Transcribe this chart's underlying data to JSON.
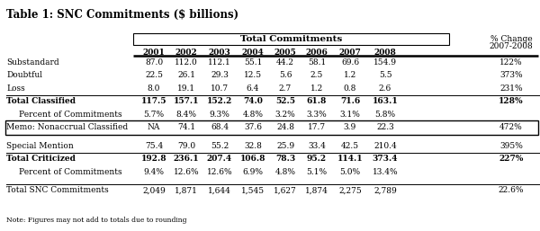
{
  "title": "Table 1: SNC Commitments ($ billions)",
  "header_group": "Total Commitments",
  "years": [
    "2001",
    "2002",
    "2003",
    "2004",
    "2005",
    "2006",
    "2007",
    "2008"
  ],
  "pct_change_header": [
    "% Change",
    "2007-2008"
  ],
  "rows": [
    {
      "label": "Substandard",
      "bold": false,
      "indent": 0,
      "values": [
        "87.0",
        "112.0",
        "112.1",
        "55.1",
        "44.2",
        "58.1",
        "69.6",
        "154.9",
        "122%"
      ],
      "line_above": false,
      "line_below": false,
      "box": false,
      "spacer": false
    },
    {
      "label": "Doubtful",
      "bold": false,
      "indent": 0,
      "values": [
        "22.5",
        "26.1",
        "29.3",
        "12.5",
        "5.6",
        "2.5",
        "1.2",
        "5.5",
        "373%"
      ],
      "line_above": false,
      "line_below": false,
      "box": false,
      "spacer": false
    },
    {
      "label": "Loss",
      "bold": false,
      "indent": 0,
      "values": [
        "8.0",
        "19.1",
        "10.7",
        "6.4",
        "2.7",
        "1.2",
        "0.8",
        "2.6",
        "231%"
      ],
      "line_above": false,
      "line_below": true,
      "box": false,
      "spacer": false
    },
    {
      "label": "Total Classified",
      "bold": true,
      "indent": 0,
      "values": [
        "117.5",
        "157.1",
        "152.2",
        "74.0",
        "52.5",
        "61.8",
        "71.6",
        "163.1",
        "128%"
      ],
      "line_above": false,
      "line_below": false,
      "box": false,
      "spacer": false
    },
    {
      "label": "Percent of Commitments",
      "bold": false,
      "indent": 1,
      "values": [
        "5.7%",
        "8.4%",
        "9.3%",
        "4.8%",
        "3.2%",
        "3.3%",
        "3.1%",
        "5.8%",
        ""
      ],
      "line_above": false,
      "line_below": false,
      "box": false,
      "spacer": false
    },
    {
      "label": "Memo: Nonaccrual Classified",
      "bold": false,
      "indent": 0,
      "values": [
        "NA",
        "74.1",
        "68.4",
        "37.6",
        "24.8",
        "17.7",
        "3.9",
        "22.3",
        "472%"
      ],
      "line_above": false,
      "line_below": false,
      "box": true,
      "spacer": false
    },
    {
      "label": "",
      "bold": false,
      "indent": 0,
      "values": [
        "",
        "",
        "",
        "",
        "",
        "",
        "",
        "",
        ""
      ],
      "line_above": false,
      "line_below": false,
      "box": false,
      "spacer": true
    },
    {
      "label": "Special Mention",
      "bold": false,
      "indent": 0,
      "values": [
        "75.4",
        "79.0",
        "55.2",
        "32.8",
        "25.9",
        "33.4",
        "42.5",
        "210.4",
        "395%"
      ],
      "line_above": false,
      "line_below": true,
      "box": false,
      "spacer": false
    },
    {
      "label": "Total Criticized",
      "bold": true,
      "indent": 0,
      "values": [
        "192.8",
        "236.1",
        "207.4",
        "106.8",
        "78.3",
        "95.2",
        "114.1",
        "373.4",
        "227%"
      ],
      "line_above": false,
      "line_below": false,
      "box": false,
      "spacer": false
    },
    {
      "label": "Percent of Commitments",
      "bold": false,
      "indent": 1,
      "values": [
        "9.4%",
        "12.6%",
        "12.6%",
        "6.9%",
        "4.8%",
        "5.1%",
        "5.0%",
        "13.4%",
        ""
      ],
      "line_above": false,
      "line_below": false,
      "box": false,
      "spacer": false
    },
    {
      "label": "",
      "bold": false,
      "indent": 0,
      "values": [
        "",
        "",
        "",
        "",
        "",
        "",
        "",
        "",
        ""
      ],
      "line_above": false,
      "line_below": false,
      "box": false,
      "spacer": true
    },
    {
      "label": "Total SNC Commitments",
      "bold": false,
      "indent": 0,
      "values": [
        "2,049",
        "1,871",
        "1,644",
        "1,545",
        "1,627",
        "1,874",
        "2,275",
        "2,789",
        "22.6%"
      ],
      "line_above": true,
      "line_below": false,
      "box": false,
      "spacer": false
    }
  ],
  "note": "Note: Figures may not add to totals due to rounding",
  "bg_color": "#ffffff"
}
